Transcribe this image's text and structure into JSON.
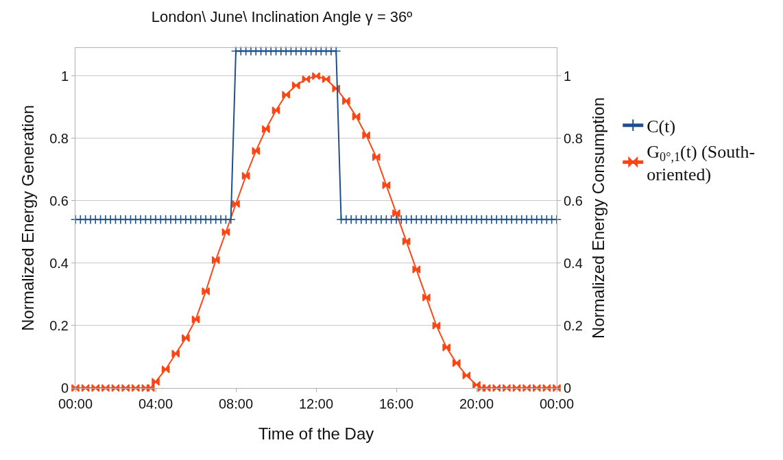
{
  "chart_data": {
    "type": "line",
    "title": "London\\ June\\ Inclination Angle γ = 36º",
    "xlabel": "Time of the Day",
    "ylabel": "Normalized Energy Generation",
    "y2label": "Normalized Energy Consumption",
    "xlim": [
      0,
      24
    ],
    "xticks": [
      {
        "value": 0,
        "label": "00:00"
      },
      {
        "value": 4,
        "label": "04:00"
      },
      {
        "value": 8,
        "label": "08:00"
      },
      {
        "value": 12,
        "label": "12:00"
      },
      {
        "value": 16,
        "label": "16:00"
      },
      {
        "value": 20,
        "label": "20:00"
      },
      {
        "value": 24,
        "label": "00:00"
      }
    ],
    "ylim": [
      0,
      1.09
    ],
    "yticks": [
      0,
      0.2,
      0.4,
      0.6,
      0.8,
      1
    ],
    "y2lim": [
      0,
      1.09
    ],
    "y2ticks": [
      0,
      0.2,
      0.4,
      0.6,
      0.8,
      1
    ],
    "grid": "y",
    "legend": "right",
    "series": [
      {
        "name": "C(t)",
        "color": "#1f4e8c",
        "axis": "y2",
        "marker": "cross",
        "x": [
          0,
          0.25,
          0.5,
          0.75,
          1,
          1.25,
          1.5,
          1.75,
          2,
          2.25,
          2.5,
          2.75,
          3,
          3.25,
          3.5,
          3.75,
          4,
          4.25,
          4.5,
          4.75,
          5,
          5.25,
          5.5,
          5.75,
          6,
          6.25,
          6.5,
          6.75,
          7,
          7.25,
          7.5,
          7.75,
          8,
          8.25,
          8.5,
          8.75,
          9,
          9.25,
          9.5,
          9.75,
          10,
          10.25,
          10.5,
          10.75,
          11,
          11.25,
          11.5,
          11.75,
          12,
          12.25,
          12.5,
          12.75,
          13,
          13.25,
          13.5,
          13.75,
          14,
          14.25,
          14.5,
          14.75,
          15,
          15.25,
          15.5,
          15.75,
          16,
          16.25,
          16.5,
          16.75,
          17,
          17.25,
          17.5,
          17.75,
          18,
          18.25,
          18.5,
          18.75,
          19,
          19.25,
          19.5,
          19.75,
          20,
          20.25,
          20.5,
          20.75,
          21,
          21.25,
          21.5,
          21.75,
          22,
          22.25,
          22.5,
          22.75,
          23,
          23.25,
          23.5,
          23.75,
          24
        ],
        "values": [
          0.54,
          0.54,
          0.54,
          0.54,
          0.54,
          0.54,
          0.54,
          0.54,
          0.54,
          0.54,
          0.54,
          0.54,
          0.54,
          0.54,
          0.54,
          0.54,
          0.54,
          0.54,
          0.54,
          0.54,
          0.54,
          0.54,
          0.54,
          0.54,
          0.54,
          0.54,
          0.54,
          0.54,
          0.54,
          0.54,
          0.54,
          0.54,
          1.08,
          1.08,
          1.08,
          1.08,
          1.08,
          1.08,
          1.08,
          1.08,
          1.08,
          1.08,
          1.08,
          1.08,
          1.08,
          1.08,
          1.08,
          1.08,
          1.08,
          1.08,
          1.08,
          1.08,
          1.08,
          0.54,
          0.54,
          0.54,
          0.54,
          0.54,
          0.54,
          0.54,
          0.54,
          0.54,
          0.54,
          0.54,
          0.54,
          0.54,
          0.54,
          0.54,
          0.54,
          0.54,
          0.54,
          0.54,
          0.54,
          0.54,
          0.54,
          0.54,
          0.54,
          0.54,
          0.54,
          0.54,
          0.54,
          0.54,
          0.54,
          0.54,
          0.54,
          0.54,
          0.54,
          0.54,
          0.54,
          0.54,
          0.54,
          0.54,
          0.54,
          0.54,
          0.54,
          0.54,
          0.54
        ]
      },
      {
        "name": "G$_{0°,1}$(t) (South-oriented)",
        "color": "#ff4513",
        "marker": "diamond",
        "x": [
          0,
          0.5,
          1,
          1.5,
          2,
          2.5,
          3,
          3.5,
          3.75,
          4,
          4.5,
          5,
          5.5,
          6,
          6.5,
          7,
          7.5,
          8,
          8.5,
          9,
          9.5,
          10,
          10.5,
          11,
          11.5,
          12,
          12.5,
          13,
          13.5,
          14,
          14.5,
          15,
          15.5,
          16,
          16.5,
          17,
          17.5,
          18,
          18.5,
          19,
          19.5,
          20,
          20.25,
          20.5,
          21,
          21.5,
          22,
          22.5,
          23,
          23.5,
          24
        ],
        "values": [
          0,
          0,
          0,
          0,
          0,
          0,
          0,
          0,
          0,
          0.02,
          0.06,
          0.11,
          0.16,
          0.22,
          0.31,
          0.41,
          0.5,
          0.59,
          0.68,
          0.76,
          0.83,
          0.89,
          0.94,
          0.97,
          0.99,
          1.0,
          0.99,
          0.96,
          0.92,
          0.87,
          0.81,
          0.74,
          0.65,
          0.56,
          0.47,
          0.38,
          0.29,
          0.2,
          0.13,
          0.08,
          0.04,
          0.01,
          0,
          0,
          0,
          0,
          0,
          0,
          0,
          0,
          0
        ]
      }
    ]
  }
}
